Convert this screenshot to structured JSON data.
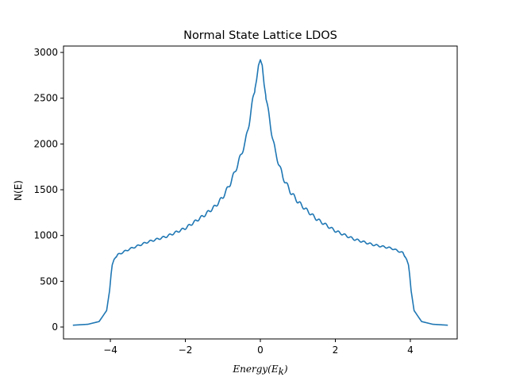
{
  "chart_data": {
    "type": "line",
    "title": "Normal State Lattice LDOS",
    "xlabel": "Energy(E_k)",
    "xlabel_main": "Energy(E",
    "xlabel_sub": "k",
    "xlabel_close": ")",
    "ylabel": "N(E)",
    "xlim": [
      -5.25,
      5.25
    ],
    "ylim": [
      -130,
      3070
    ],
    "xticks": [
      -4,
      -2,
      0,
      2,
      4
    ],
    "xtick_labels": [
      "−4",
      "−2",
      "0",
      "2",
      "4"
    ],
    "yticks": [
      0,
      500,
      1000,
      1500,
      2000,
      2500,
      3000
    ],
    "ytick_labels": [
      "0",
      "500",
      "1000",
      "1500",
      "2000",
      "2500",
      "3000"
    ],
    "grid": false,
    "color": "#1f77b4",
    "series": [
      {
        "x": [
          -5.0,
          -4.6,
          -4.3,
          -4.1,
          -4.02,
          -3.98,
          -3.95,
          -3.9,
          -3.8,
          -3.5,
          -3.0,
          -2.5,
          -2.0,
          -1.5,
          -1.2,
          -1.0,
          -0.8,
          -0.6,
          -0.4,
          -0.3,
          -0.2,
          -0.1,
          -0.05,
          0.0,
          0.05,
          0.1,
          0.2,
          0.3,
          0.4,
          0.6,
          0.8,
          1.0,
          1.2,
          1.5,
          2.0,
          2.5,
          3.0,
          3.5,
          3.8,
          3.9,
          3.95,
          3.98,
          4.02,
          4.1,
          4.3,
          4.6,
          5.0
        ],
        "y": [
          20,
          30,
          60,
          180,
          400,
          580,
          680,
          740,
          790,
          850,
          930,
          990,
          1080,
          1220,
          1320,
          1420,
          1570,
          1780,
          2020,
          2230,
          2480,
          2700,
          2860,
          2920,
          2860,
          2650,
          2380,
          2130,
          1910,
          1640,
          1480,
          1370,
          1290,
          1180,
          1050,
          960,
          900,
          860,
          810,
          740,
          680,
          580,
          400,
          180,
          60,
          30,
          20
        ]
      }
    ]
  }
}
